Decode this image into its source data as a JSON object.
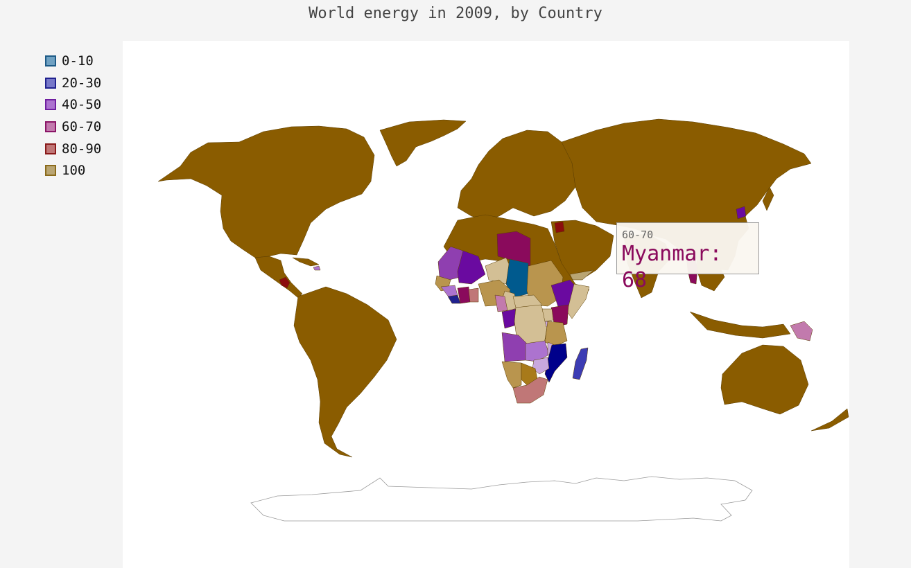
{
  "title": "World energy in 2009, by Country",
  "legend": [
    {
      "label": "0-10",
      "fill": "#6fa1c2",
      "stroke": "#1d5a86"
    },
    {
      "label": "20-30",
      "fill": "#7778c9",
      "stroke": "#20218e"
    },
    {
      "label": "40-50",
      "fill": "#ac73cf",
      "stroke": "#6f1fa0"
    },
    {
      "label": "60-70",
      "fill": "#c27aad",
      "stroke": "#8a1466"
    },
    {
      "label": "80-90",
      "fill": "#c07777",
      "stroke": "#8a1a1a"
    },
    {
      "label": "100",
      "fill": "#b9a573",
      "stroke": "#8a6a1a"
    }
  ],
  "colors": {
    "dominant_country": "#8a5c00",
    "tooltip_value": "#8a0a5c",
    "border": "#5a3c00"
  },
  "tooltip": {
    "range": "60-70",
    "value": "Myanmar: 68"
  }
}
